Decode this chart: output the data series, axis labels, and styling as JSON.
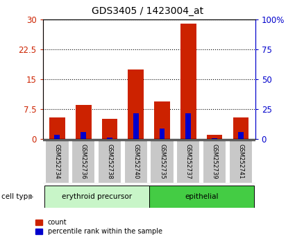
{
  "title": "GDS3405 / 1423004_at",
  "samples": [
    "GSM252734",
    "GSM252736",
    "GSM252738",
    "GSM252740",
    "GSM252735",
    "GSM252737",
    "GSM252739",
    "GSM252741"
  ],
  "count_values": [
    5.5,
    8.5,
    5.0,
    17.5,
    9.5,
    29.0,
    1.0,
    5.5
  ],
  "percentile_values": [
    1.0,
    1.8,
    0.4,
    6.5,
    2.7,
    6.5,
    0.2,
    1.8
  ],
  "cell_types": [
    {
      "label": "erythroid precursor",
      "start": 0,
      "end": 4,
      "color": "#c8f5c8"
    },
    {
      "label": "epithelial",
      "start": 4,
      "end": 8,
      "color": "#44cc44"
    }
  ],
  "ylim_left": [
    0,
    30
  ],
  "yticks_left": [
    0,
    7.5,
    15,
    22.5,
    30
  ],
  "ylim_right": [
    0,
    100
  ],
  "yticks_right": [
    0,
    25,
    50,
    75,
    100
  ],
  "ytick_labels_right": [
    "0",
    "25",
    "50",
    "75",
    "100%"
  ],
  "left_axis_color": "#cc2200",
  "right_axis_color": "#0000cc",
  "bar_color_red": "#cc2200",
  "bar_color_blue": "#0000cc",
  "background_color": "#ffffff",
  "plot_bg_color": "#ffffff",
  "grid_color": "#000000",
  "cell_type_label": "cell type",
  "legend_count": "count",
  "legend_percentile": "percentile rank within the sample",
  "label_box_color": "#c8c8c8",
  "label_box_edge_color": "#ffffff"
}
